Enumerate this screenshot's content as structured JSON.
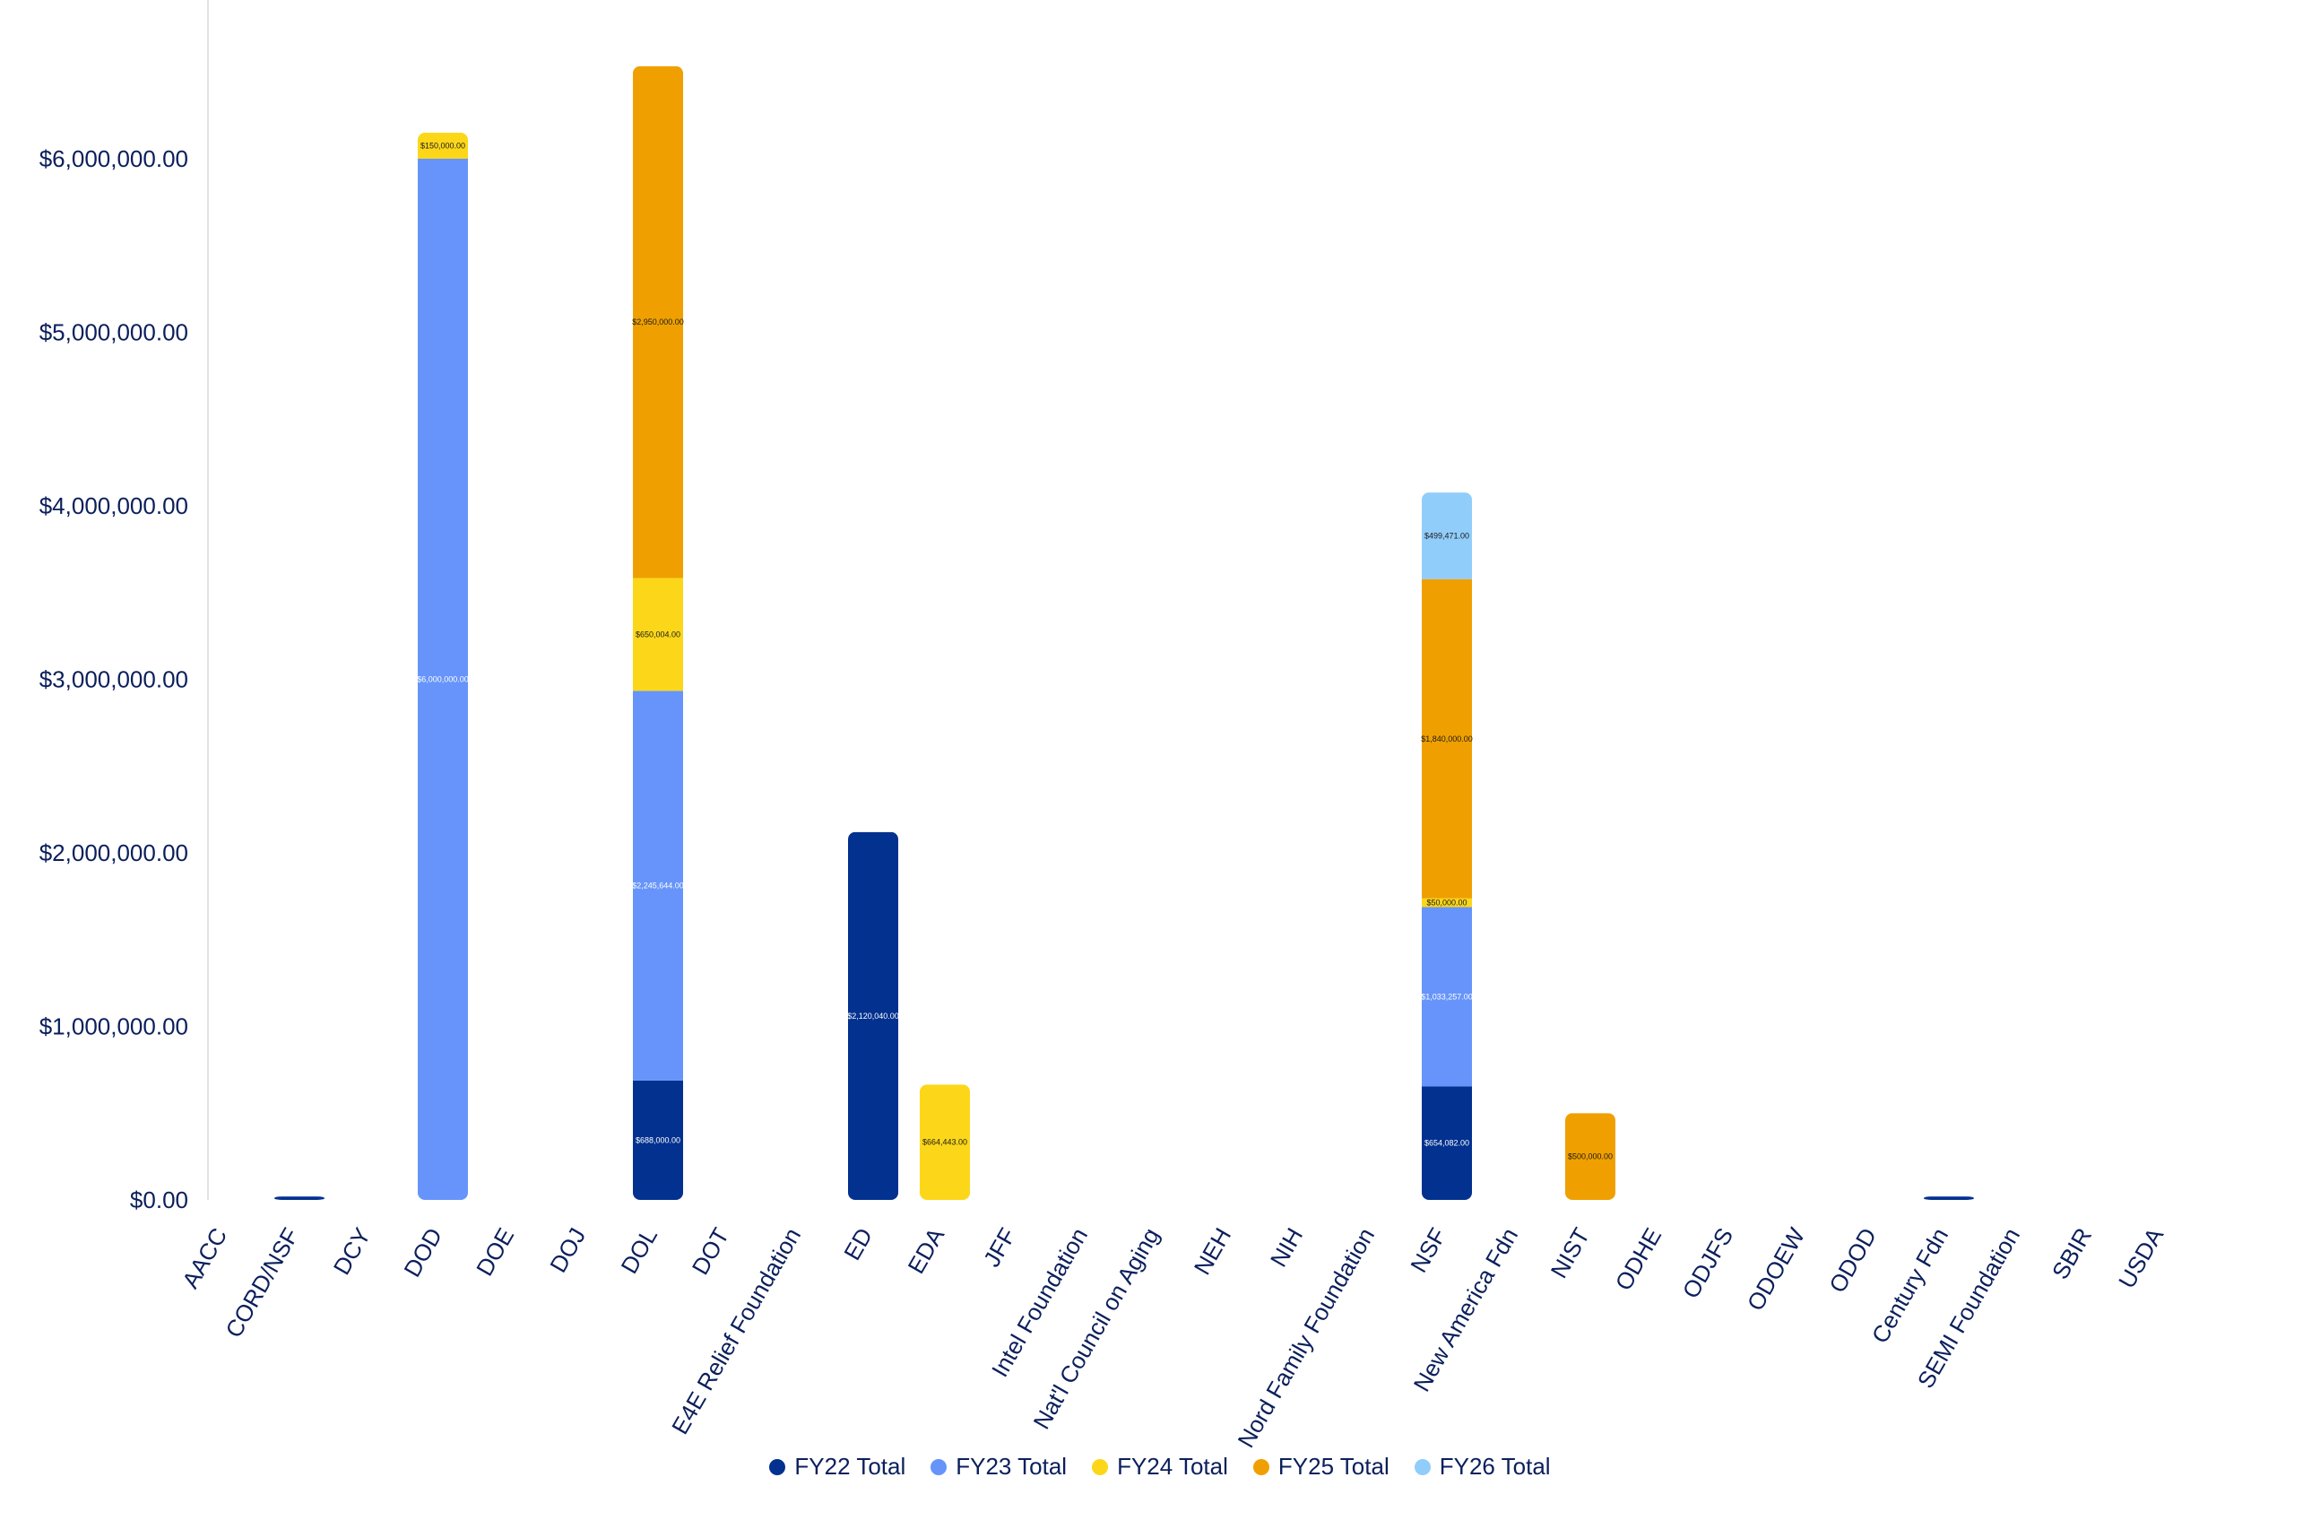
{
  "chart_data": {
    "type": "bar",
    "stacked": true,
    "title": "",
    "xlabel": "",
    "ylabel": "",
    "ylim": [
      0,
      6600000
    ],
    "yticks": [
      0,
      1000000,
      2000000,
      3000000,
      4000000,
      5000000,
      6000000
    ],
    "ytick_labels": [
      "$0.00",
      "$1,000,000.00",
      "$2,000,000.00",
      "$3,000,000.00",
      "$4,000,000.00",
      "$5,000,000.00",
      "$6,000,000.00"
    ],
    "grid": false,
    "legend_position": "bottom",
    "categories": [
      "AACC",
      "CORD/NSF",
      "DCY",
      "DOD",
      "DOE",
      "DOJ",
      "DOL",
      "DOT",
      "E4E Relief Foundation",
      "ED",
      "EDA",
      "JFF",
      "Intel Foundation",
      "Nat'l Council on Aging",
      "NEH",
      "NIH",
      "Nord Family Foundation",
      "NSF",
      "New America Fdn",
      "NIST",
      "ODHE",
      "ODJFS",
      "ODOEW",
      "ODOD",
      "Century Fdn",
      "SEMI Foundation",
      "SBIR",
      "USDA"
    ],
    "series": [
      {
        "name": "FY22 Total",
        "color": "#03318f",
        "values": [
          0,
          20000,
          0,
          0,
          0,
          0,
          688000,
          0,
          0,
          2120040,
          0,
          0,
          0,
          0,
          0,
          0,
          0,
          654082,
          0,
          0,
          0,
          0,
          0,
          0,
          20000,
          0,
          0,
          0
        ],
        "labels": [
          "",
          "",
          "",
          "",
          "",
          "",
          "$688,000.00",
          "",
          "",
          "$2,120,040.00",
          "",
          "",
          "",
          "",
          "",
          "",
          "",
          "$654,082.00",
          "",
          "",
          "",
          "",
          "",
          "",
          "",
          "",
          "",
          ""
        ]
      },
      {
        "name": "FY23 Total",
        "color": "#6694fa",
        "values": [
          0,
          0,
          0,
          6000000,
          0,
          0,
          2245644,
          0,
          0,
          0,
          0,
          0,
          0,
          0,
          0,
          0,
          0,
          1033257,
          0,
          0,
          0,
          0,
          0,
          0,
          0,
          0,
          0,
          0
        ],
        "labels": [
          "",
          "",
          "",
          "$6,000,000.00",
          "",
          "",
          "$2,245,644.00",
          "",
          "",
          "",
          "",
          "",
          "",
          "",
          "",
          "",
          "",
          "$1,033,257.00",
          "",
          "",
          "",
          "",
          "",
          "",
          "",
          "",
          "",
          ""
        ]
      },
      {
        "name": "FY24 Total",
        "color": "#fcd719",
        "values": [
          0,
          0,
          0,
          150000,
          0,
          0,
          650004,
          0,
          0,
          0,
          664443,
          0,
          0,
          0,
          0,
          0,
          0,
          50000,
          0,
          0,
          0,
          0,
          0,
          0,
          0,
          0,
          0,
          0
        ],
        "labels": [
          "",
          "",
          "",
          "$150,000.00",
          "",
          "",
          "$650,004.00",
          "",
          "",
          "",
          "$664,443.00",
          "",
          "",
          "",
          "",
          "",
          "",
          "$50,000.00",
          "",
          "",
          "",
          "",
          "",
          "",
          "",
          "",
          "",
          ""
        ]
      },
      {
        "name": "FY25 Total",
        "color": "#efa000",
        "values": [
          0,
          0,
          0,
          0,
          0,
          0,
          2950000,
          0,
          0,
          0,
          0,
          0,
          0,
          0,
          0,
          0,
          0,
          1840000,
          0,
          500000,
          0,
          0,
          0,
          0,
          0,
          0,
          0,
          0
        ],
        "labels": [
          "",
          "",
          "",
          "",
          "",
          "",
          "$2,950,000.00",
          "",
          "",
          "",
          "",
          "",
          "",
          "",
          "",
          "",
          "",
          "$1,840,000.00",
          "",
          "$500,000.00",
          "",
          "",
          "",
          "",
          "",
          "",
          "",
          ""
        ]
      },
      {
        "name": "FY26 Total",
        "color": "#91cdfa",
        "values": [
          0,
          0,
          0,
          0,
          0,
          0,
          0,
          0,
          0,
          0,
          0,
          0,
          0,
          0,
          0,
          0,
          0,
          499471,
          0,
          0,
          0,
          0,
          0,
          0,
          0,
          0,
          0,
          0
        ],
        "labels": [
          "",
          "",
          "",
          "",
          "",
          "",
          "",
          "",
          "",
          "",
          "",
          "",
          "",
          "",
          "",
          "",
          "",
          "$499,471.00",
          "",
          "",
          "",
          "",
          "",
          "",
          "",
          "",
          "",
          ""
        ]
      }
    ]
  }
}
